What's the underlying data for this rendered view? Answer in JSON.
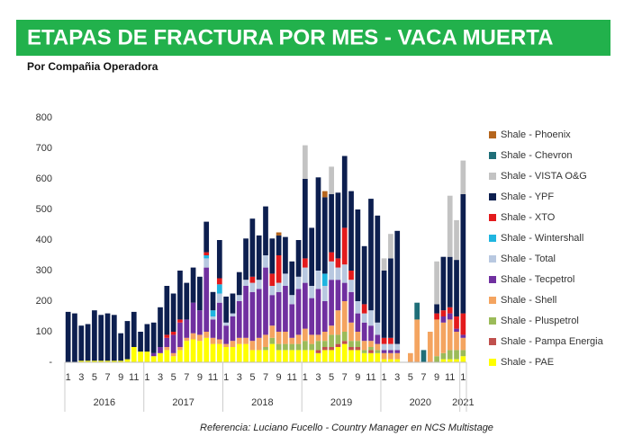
{
  "chart_data": {
    "type": "stacked_bar",
    "title": "ETAPAS DE FRACTURA POR MES -  VACA MUERTA",
    "subtitle": "Por Compañia Operadora",
    "source": "Referencia:  Luciano Fucello - Country Manager en NCS Multistage",
    "categories": [
      "1",
      null,
      "3",
      null,
      "5",
      null,
      "7",
      null,
      "9",
      null,
      "11",
      null,
      "1",
      null,
      "3",
      null,
      "5",
      null,
      "7",
      null,
      "9",
      null,
      "11",
      null,
      "1",
      null,
      "3",
      null,
      "5",
      null,
      "7",
      null,
      "9",
      null,
      "11",
      null,
      "1",
      null,
      "3",
      null,
      "5",
      null,
      "7",
      null,
      "9",
      null,
      "11",
      null,
      "1",
      null,
      "3",
      null,
      "5",
      null,
      "7",
      null,
      "9",
      null,
      "11",
      null,
      "1"
    ],
    "x_groups": [
      "2016",
      "2017",
      "2018",
      "2019",
      "2020",
      "2021"
    ],
    "ylim": [
      0,
      800
    ],
    "yticks": [
      {
        "value": 0,
        "label": "-"
      },
      100,
      200,
      300,
      400,
      500,
      600,
      700,
      800
    ],
    "series": [
      {
        "name": "Shale - Phoenix",
        "color": "#b5651d",
        "values": [
          0,
          0,
          0,
          0,
          0,
          0,
          0,
          0,
          0,
          0,
          0,
          0,
          0,
          0,
          0,
          0,
          0,
          0,
          0,
          0,
          0,
          0,
          0,
          0,
          0,
          0,
          0,
          0,
          0,
          0,
          0,
          0,
          10,
          0,
          0,
          0,
          0,
          0,
          0,
          20,
          0,
          0,
          0,
          0,
          0,
          0,
          0,
          0,
          0,
          0,
          0,
          0,
          0,
          0,
          0,
          0,
          0,
          0,
          0,
          0,
          0
        ]
      },
      {
        "name": "Shale - Chevron",
        "color": "#1f6e78",
        "values": [
          0,
          0,
          0,
          0,
          0,
          0,
          0,
          0,
          0,
          0,
          0,
          0,
          0,
          0,
          0,
          0,
          0,
          0,
          0,
          0,
          0,
          0,
          0,
          0,
          0,
          0,
          0,
          0,
          0,
          0,
          0,
          0,
          0,
          0,
          0,
          0,
          0,
          0,
          0,
          0,
          0,
          0,
          0,
          0,
          0,
          0,
          0,
          0,
          0,
          0,
          0,
          0,
          0,
          55,
          40,
          0,
          0,
          0,
          0,
          0,
          0
        ]
      },
      {
        "name": "Shale - VISTA O&G",
        "color": "#c3c3c3",
        "values": [
          0,
          0,
          0,
          0,
          0,
          0,
          0,
          0,
          0,
          0,
          0,
          0,
          0,
          0,
          0,
          0,
          0,
          0,
          0,
          0,
          0,
          0,
          0,
          0,
          0,
          0,
          0,
          0,
          0,
          0,
          0,
          0,
          0,
          0,
          0,
          0,
          110,
          0,
          0,
          0,
          90,
          0,
          0,
          0,
          0,
          0,
          0,
          0,
          40,
          80,
          0,
          0,
          0,
          0,
          0,
          0,
          140,
          0,
          200,
          130,
          110
        ]
      },
      {
        "name": "Shale - YPF",
        "color": "#0d1f4f",
        "values": [
          165,
          160,
          115,
          120,
          165,
          150,
          155,
          150,
          90,
          125,
          115,
          65,
          90,
          100,
          130,
          160,
          125,
          160,
          120,
          115,
          110,
          100,
          60,
          125,
          85,
          65,
          75,
          135,
          190,
          145,
          160,
          115,
          65,
          120,
          110,
          120,
          260,
          190,
          305,
          250,
          190,
          215,
          235,
          260,
          300,
          190,
          365,
          350,
          220,
          260,
          370,
          0,
          0,
          0,
          0,
          0,
          30,
          175,
          165,
          185,
          390
        ]
      },
      {
        "name": "Shale - XTO",
        "color": "#e31a1c",
        "values": [
          0,
          0,
          0,
          0,
          0,
          0,
          0,
          0,
          0,
          0,
          0,
          0,
          0,
          0,
          0,
          10,
          10,
          10,
          0,
          0,
          0,
          10,
          0,
          20,
          0,
          0,
          0,
          0,
          20,
          0,
          0,
          40,
          90,
          0,
          0,
          0,
          30,
          0,
          0,
          0,
          30,
          30,
          120,
          30,
          0,
          30,
          0,
          0,
          20,
          20,
          0,
          0,
          0,
          0,
          0,
          0,
          20,
          20,
          20,
          40,
          70
        ]
      },
      {
        "name": "Shale - Wintershall",
        "color": "#1fb5e0",
        "values": [
          0,
          0,
          0,
          0,
          0,
          0,
          0,
          0,
          0,
          0,
          0,
          0,
          0,
          0,
          0,
          0,
          0,
          0,
          0,
          0,
          0,
          10,
          20,
          30,
          0,
          0,
          0,
          0,
          0,
          0,
          0,
          0,
          0,
          0,
          0,
          0,
          0,
          0,
          0,
          40,
          0,
          0,
          0,
          0,
          0,
          0,
          0,
          0,
          0,
          0,
          0,
          0,
          0,
          0,
          0,
          0,
          0,
          0,
          0,
          0,
          0
        ]
      },
      {
        "name": "Shale - Total",
        "color": "#b8c8e0",
        "values": [
          0,
          0,
          0,
          0,
          0,
          0,
          0,
          0,
          0,
          0,
          0,
          0,
          0,
          0,
          0,
          0,
          0,
          0,
          0,
          0,
          0,
          30,
          10,
          30,
          10,
          10,
          20,
          20,
          30,
          30,
          40,
          30,
          30,
          40,
          30,
          40,
          50,
          40,
          60,
          50,
          60,
          40,
          60,
          40,
          40,
          30,
          50,
          40,
          20,
          20,
          20,
          0,
          0,
          0,
          0,
          0,
          0,
          0,
          0,
          0,
          0
        ]
      },
      {
        "name": "Shale - Tecpetrol",
        "color": "#7030a0",
        "values": [
          0,
          0,
          0,
          0,
          0,
          0,
          0,
          0,
          0,
          0,
          0,
          0,
          0,
          10,
          20,
          30,
          60,
          80,
          60,
          100,
          80,
          210,
          60,
          120,
          60,
          80,
          120,
          170,
          160,
          160,
          220,
          100,
          130,
          150,
          110,
          150,
          150,
          120,
          150,
          100,
          150,
          100,
          60,
          100,
          60,
          60,
          50,
          30,
          10,
          10,
          10,
          0,
          0,
          0,
          0,
          0,
          0,
          20,
          20,
          10,
          10
        ]
      },
      {
        "name": "Shale - Shell",
        "color": "#f4a460",
        "values": [
          0,
          0,
          0,
          0,
          0,
          0,
          0,
          0,
          0,
          0,
          0,
          0,
          0,
          0,
          0,
          10,
          10,
          10,
          10,
          20,
          20,
          20,
          20,
          15,
          10,
          20,
          20,
          20,
          30,
          40,
          40,
          40,
          40,
          40,
          20,
          30,
          40,
          30,
          20,
          30,
          30,
          80,
          100,
          60,
          30,
          30,
          20,
          20,
          20,
          20,
          20,
          0,
          30,
          140,
          0,
          100,
          120,
          100,
          100,
          60,
          40
        ]
      },
      {
        "name": "Shale - Pluspetrol",
        "color": "#9bbb59",
        "values": [
          0,
          0,
          0,
          0,
          0,
          0,
          0,
          0,
          0,
          0,
          0,
          0,
          0,
          0,
          0,
          0,
          0,
          0,
          0,
          0,
          0,
          0,
          0,
          0,
          0,
          0,
          0,
          0,
          0,
          0,
          10,
          20,
          20,
          20,
          20,
          20,
          30,
          20,
          30,
          20,
          40,
          30,
          30,
          20,
          20,
          10,
          10,
          10,
          0,
          0,
          0,
          0,
          0,
          0,
          0,
          0,
          20,
          20,
          30,
          30,
          20
        ]
      },
      {
        "name": "Shale - Pampa Energia",
        "color": "#c0504d",
        "values": [
          0,
          0,
          0,
          0,
          0,
          0,
          0,
          0,
          0,
          0,
          0,
          0,
          0,
          0,
          0,
          0,
          0,
          0,
          0,
          0,
          0,
          0,
          0,
          0,
          0,
          0,
          0,
          0,
          0,
          0,
          0,
          0,
          0,
          0,
          0,
          0,
          0,
          0,
          10,
          10,
          10,
          10,
          10,
          10,
          10,
          0,
          10,
          0,
          0,
          0,
          0,
          0,
          0,
          0,
          0,
          0,
          0,
          0,
          0,
          0,
          0
        ]
      },
      {
        "name": "Shale - PAE",
        "color": "#ffff00",
        "values": [
          0,
          0,
          5,
          5,
          5,
          5,
          5,
          5,
          5,
          10,
          50,
          35,
          35,
          20,
          30,
          40,
          20,
          40,
          70,
          75,
          70,
          80,
          60,
          60,
          50,
          50,
          60,
          60,
          40,
          40,
          40,
          60,
          40,
          40,
          40,
          40,
          40,
          40,
          30,
          40,
          40,
          50,
          60,
          40,
          40,
          30,
          30,
          30,
          10,
          10,
          10,
          0,
          0,
          0,
          0,
          0,
          0,
          10,
          10,
          10,
          20
        ]
      }
    ]
  }
}
